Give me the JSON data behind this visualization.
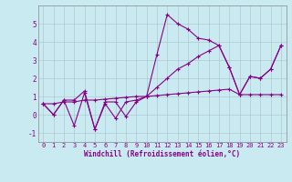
{
  "title": "",
  "xlabel": "Windchill (Refroidissement éolien,°C)",
  "background_color": "#c8eaf0",
  "grid_color": "#b0c8d0",
  "line_color": "#880088",
  "xlim": [
    -0.5,
    23.5
  ],
  "ylim": [
    -1.5,
    6.0
  ],
  "xticks": [
    0,
    1,
    2,
    3,
    4,
    5,
    6,
    7,
    8,
    9,
    10,
    11,
    12,
    13,
    14,
    15,
    16,
    17,
    18,
    19,
    20,
    21,
    22,
    23
  ],
  "yticks": [
    -1,
    0,
    1,
    2,
    3,
    4,
    5
  ],
  "series0": [
    0.6,
    0.0,
    0.8,
    0.8,
    1.3,
    -0.8,
    0.7,
    0.7,
    -0.1,
    0.7,
    1.0,
    3.3,
    5.5,
    5.0,
    4.7,
    4.2,
    4.1,
    3.8,
    2.6,
    1.1,
    2.1,
    2.0,
    2.5,
    3.8
  ],
  "series1": [
    0.6,
    0.0,
    0.8,
    -0.6,
    1.2,
    -0.8,
    0.6,
    -0.2,
    0.7,
    0.8,
    1.0,
    1.5,
    2.0,
    2.5,
    2.8,
    3.2,
    3.5,
    3.8,
    2.6,
    1.1,
    2.1,
    2.0,
    2.5,
    3.8
  ],
  "series2": [
    0.6,
    0.6,
    0.7,
    0.7,
    0.8,
    0.8,
    0.85,
    0.9,
    0.95,
    1.0,
    1.0,
    1.05,
    1.1,
    1.15,
    1.2,
    1.25,
    1.3,
    1.35,
    1.4,
    1.1,
    1.1,
    1.1,
    1.1,
    1.1
  ],
  "tick_fontsize": 5,
  "xlabel_fontsize": 5.5,
  "lw": 0.8,
  "marker_size": 3
}
